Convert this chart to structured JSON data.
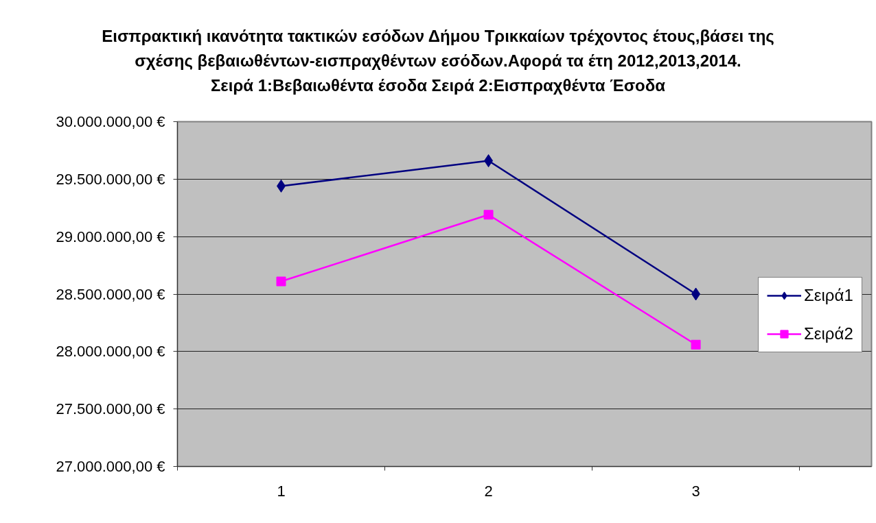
{
  "chart_data": {
    "type": "line",
    "title": "Εισπρακτική ικανότητα τακτικών εσόδων Δήμου Τρικκαίων τρέχοντος έτους,βάσει της\nσχέσης βεβαιωθέντων-εισπραχθέντων εσόδων.Αφορά τα έτη 2012,2013,2014.",
    "subtitle": "Σειρά 1:Βεβαιωθέντα έσοδα Σειρά 2:Εισπραχθέντα Έσοδα",
    "categories": [
      "1",
      "2",
      "3"
    ],
    "series": [
      {
        "name": "Σειρά1",
        "color": "#000080",
        "marker": "diamond",
        "values": [
          29440000,
          29660000,
          28500000
        ]
      },
      {
        "name": "Σειρά2",
        "color": "#ff00ff",
        "marker": "square",
        "values": [
          28610000,
          29190000,
          28060000
        ]
      }
    ],
    "ylim": [
      27000000,
      30000000
    ],
    "yticks": [
      {
        "value": 27000000,
        "label": "27.000.000,00 €"
      },
      {
        "value": 27500000,
        "label": "27.500.000,00 €"
      },
      {
        "value": 28000000,
        "label": "28.000.000,00 €"
      },
      {
        "value": 28500000,
        "label": "28.500.000,00 €"
      },
      {
        "value": 29000000,
        "label": "29.000.000,00 €"
      },
      {
        "value": 29500000,
        "label": "29.500.000,00 €"
      },
      {
        "value": 30000000,
        "label": "30.000.000,00 €"
      }
    ],
    "grid": "y",
    "legend": "right",
    "line_style": "solid"
  }
}
